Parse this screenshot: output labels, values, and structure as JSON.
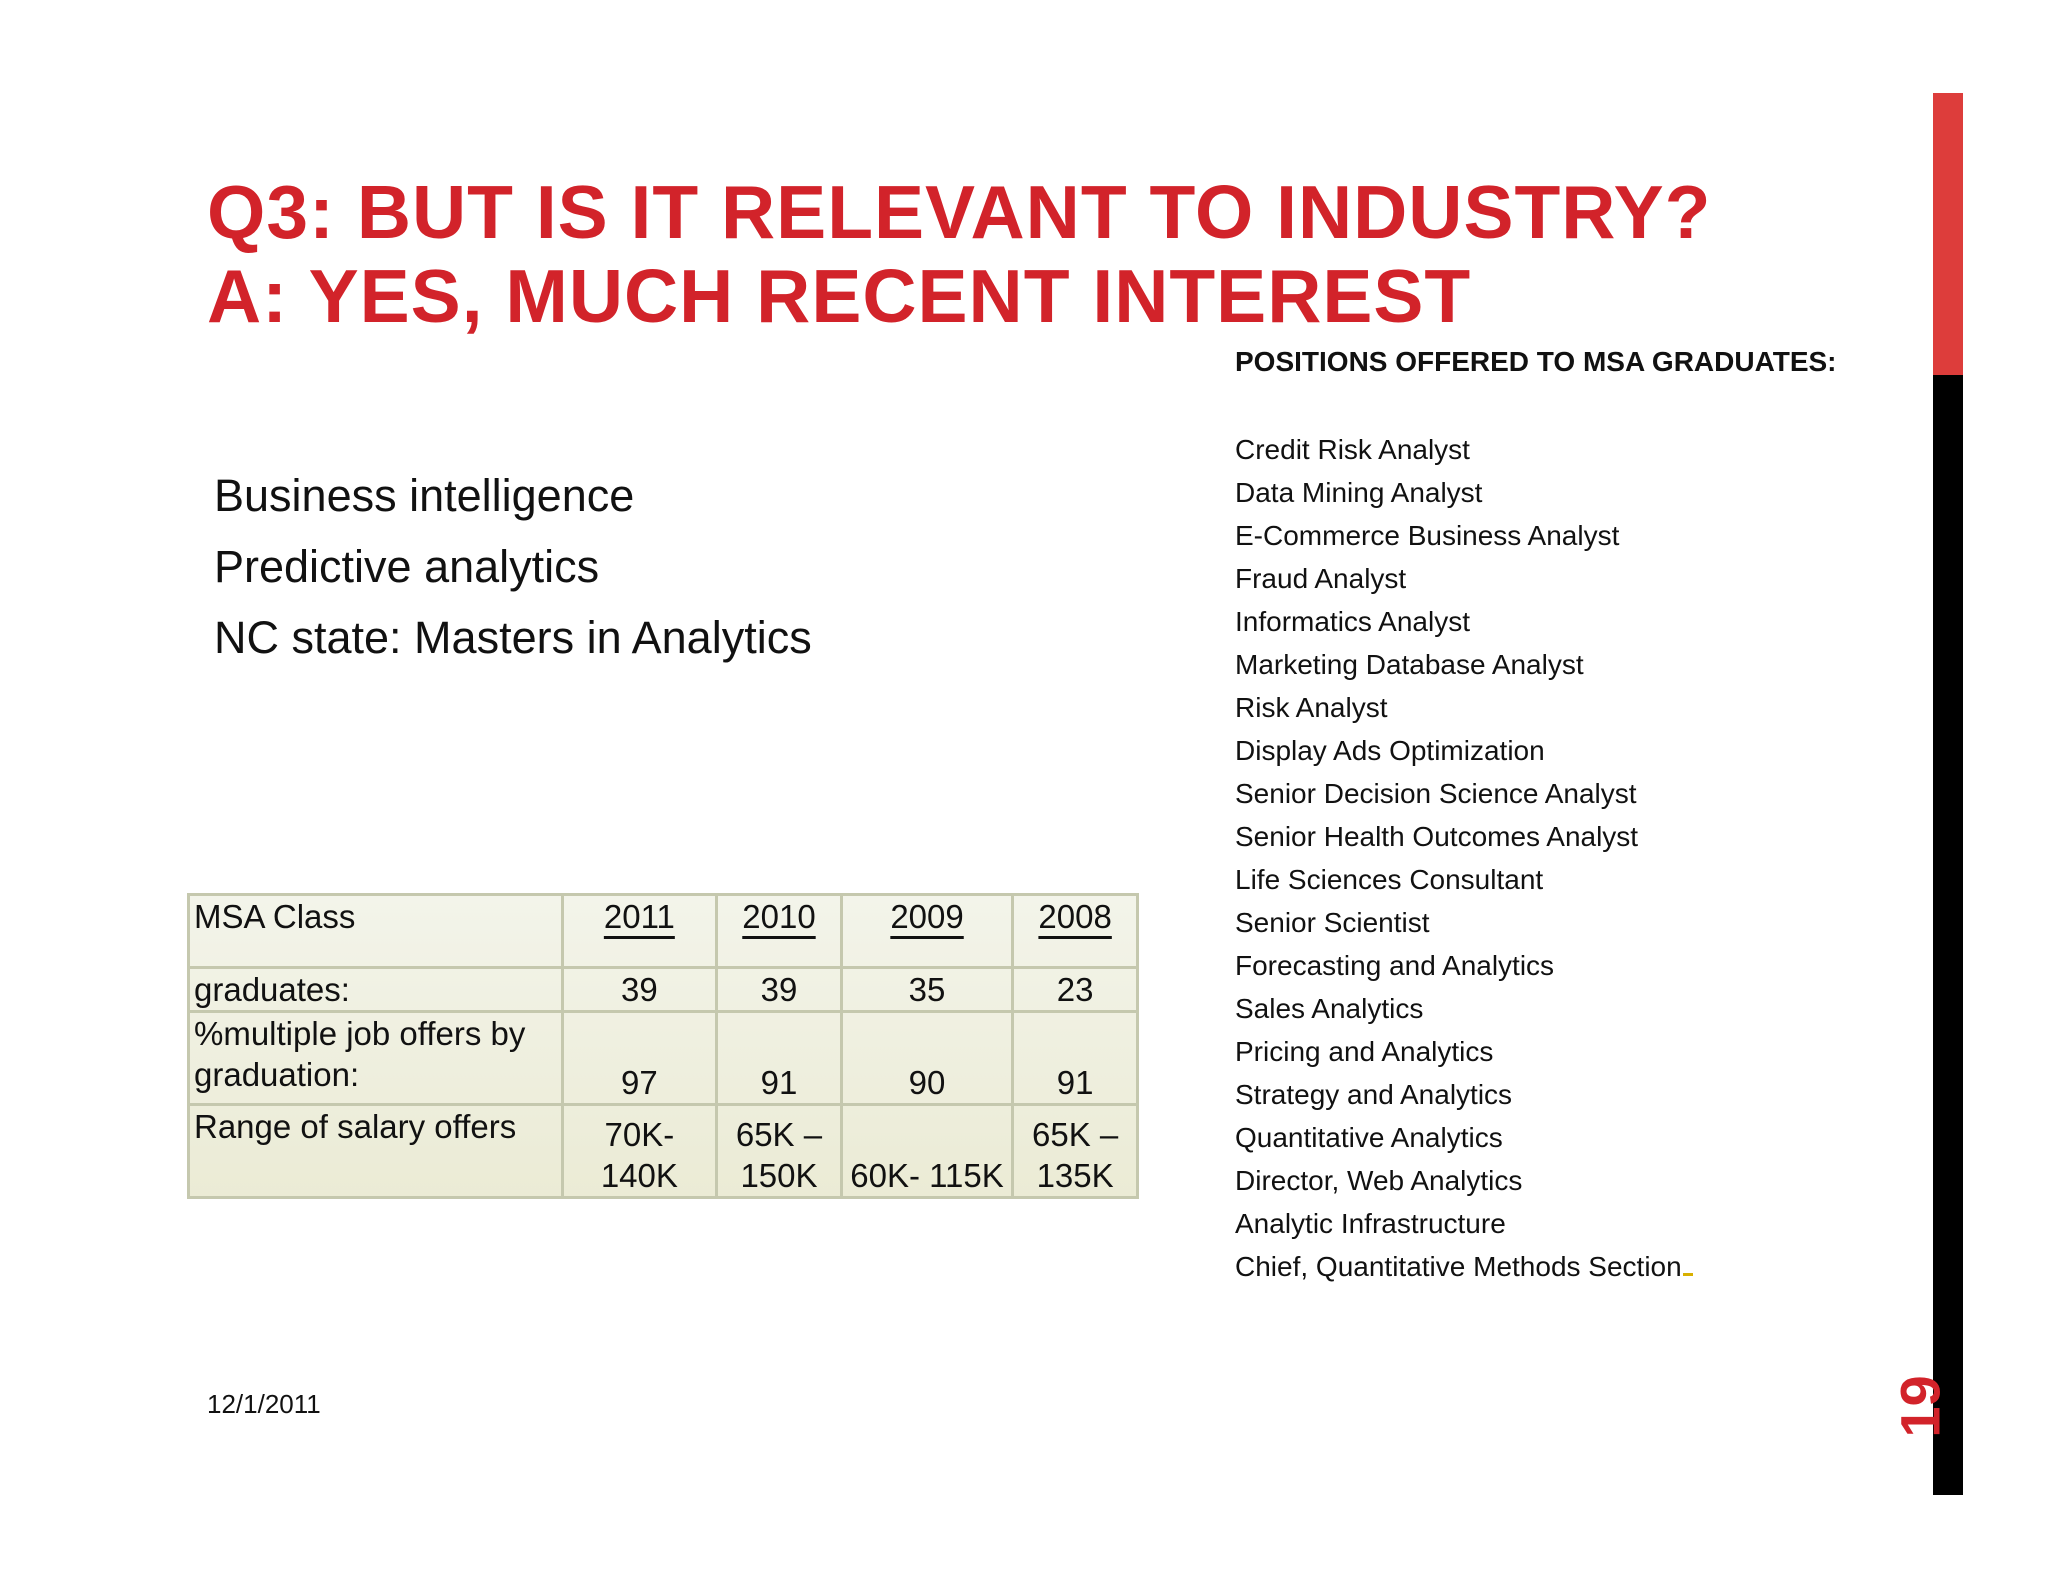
{
  "title": {
    "line1": "Q3: BUT IS IT RELEVANT TO INDUSTRY?",
    "line2": "A: YES, MUCH RECENT INTEREST"
  },
  "bullets": [
    "Business intelligence",
    "Predictive analytics",
    "NC state: Masters in Analytics"
  ],
  "positions": {
    "header": "POSITIONS OFFERED TO MSA GRADUATES:",
    "items": [
      "Credit Risk Analyst",
      "Data Mining Analyst",
      "E-Commerce Business Analyst",
      "Fraud Analyst",
      "Informatics Analyst",
      "Marketing Database Analyst",
      "Risk Analyst",
      "Display Ads Optimization",
      "Senior Decision Science  Analyst",
      "Senior Health Outcomes Analyst",
      "Life Sciences Consultant",
      "Senior Scientist",
      "Forecasting and Analytics",
      "Sales Analytics",
      "Pricing and Analytics",
      "Strategy and Analytics",
      "Quantitative Analytics",
      "Director,  Web Analytics",
      "Analytic Infrastructure",
      "Chief, Quantitative Methods Section"
    ]
  },
  "table": {
    "header": {
      "label": "MSA Class",
      "years": [
        "2011",
        "2010",
        "2009",
        "2008"
      ]
    },
    "rows": [
      {
        "label": "graduates:",
        "values": [
          "39",
          "39",
          "35",
          "23"
        ]
      },
      {
        "label": "%multiple job offers by graduation:",
        "values": [
          "97",
          "91",
          "90",
          "91"
        ]
      },
      {
        "label": "Range of salary offers",
        "values": [
          "70K-140K",
          "65K – 150K",
          "60K- 115K",
          "65K – 135K"
        ]
      }
    ]
  },
  "footer": {
    "date": "12/1/2011",
    "page_number": "19"
  },
  "colors": {
    "accent": "#d2232a",
    "bar_red": "#dd3d3b",
    "bar_black": "#000000",
    "table_border": "#c5c8ae"
  }
}
